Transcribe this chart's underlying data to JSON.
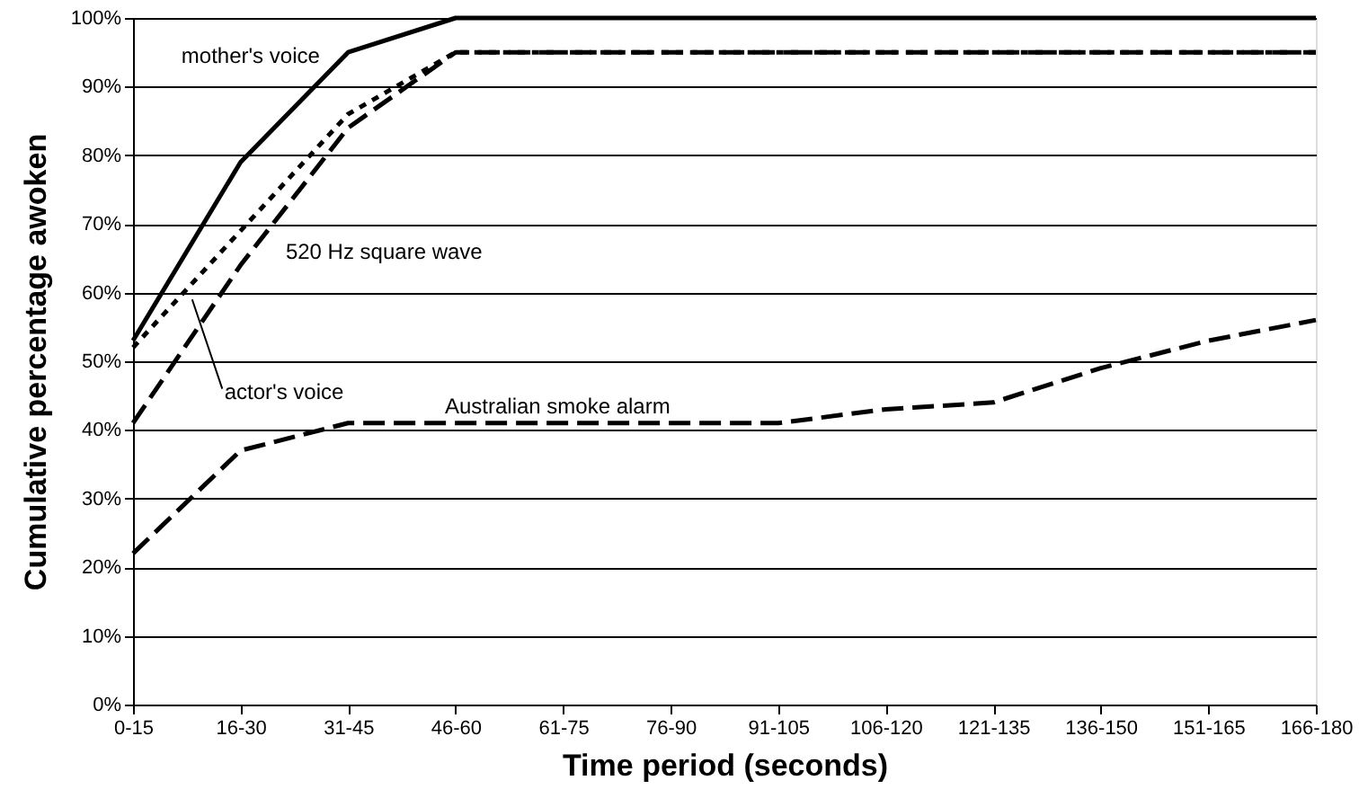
{
  "chart_data": {
    "type": "line",
    "xlabel": "Time period (seconds)",
    "ylabel": "Cumulative percentage awoken",
    "categories": [
      "0-15",
      "16-30",
      "31-45",
      "46-60",
      "61-75",
      "76-90",
      "91-105",
      "106-120",
      "121-135",
      "136-150",
      "151-165",
      "166-180"
    ],
    "series": [
      {
        "name": "mother's voice",
        "color": "#000000",
        "line_style": "solid",
        "values": [
          53,
          79,
          95,
          100,
          100,
          100,
          100,
          100,
          100,
          100,
          100,
          100
        ]
      },
      {
        "name": "actor's voice",
        "color": "#000000",
        "line_style": "dotted",
        "values": [
          52,
          69,
          86,
          95,
          95,
          95,
          95,
          95,
          95,
          95,
          95,
          95
        ]
      },
      {
        "name": "520 Hz square wave",
        "color": "#000000",
        "line_style": "dashed",
        "values": [
          41,
          64,
          84,
          95,
          95,
          95,
          95,
          95,
          95,
          95,
          95,
          95
        ]
      },
      {
        "name": "Australian smoke  alarm",
        "color": "#000000",
        "line_style": "dashed",
        "values": [
          22,
          37,
          41,
          41,
          41,
          41,
          41,
          43,
          44,
          49,
          53,
          56
        ]
      }
    ],
    "ylim": [
      0,
      100
    ],
    "yticks": [
      {
        "value": 0,
        "label": "0%"
      },
      {
        "value": 10,
        "label": "10%"
      },
      {
        "value": 20,
        "label": "20%"
      },
      {
        "value": 30,
        "label": "30%"
      },
      {
        "value": 40,
        "label": "40%"
      },
      {
        "value": 50,
        "label": "50%"
      },
      {
        "value": 60,
        "label": "60%"
      },
      {
        "value": 70,
        "label": "70%"
      },
      {
        "value": 80,
        "label": "80%"
      },
      {
        "value": 90,
        "label": "90%"
      },
      {
        "value": 100,
        "label": "100%"
      }
    ],
    "grid": "y",
    "marker": "none"
  }
}
